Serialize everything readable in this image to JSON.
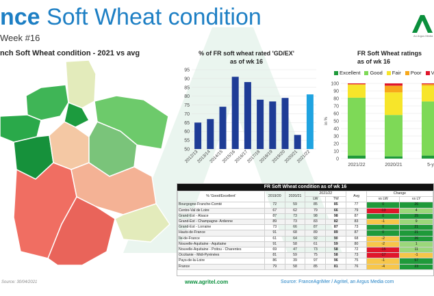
{
  "header": {
    "title_bold": "nce",
    "title_rest": " Soft Wheat condition",
    "subtitle": "Week #16",
    "logo_text": "AG",
    "logo_caption": "An Argus Media"
  },
  "map": {
    "title": "nch Soft Wheat condition - 2021 vs avg"
  },
  "colors": {
    "bar_dark": "#1e3c96",
    "bar_light": "#1fa3e0",
    "excellent": "#1f9a3a",
    "good": "#7ed957",
    "fair": "#f7e52a",
    "poor": "#f7a81b",
    "very_poor": "#e0162b",
    "title_blue": "#1d7fc4",
    "green_link": "#0a8f3c"
  },
  "chart_data": [
    {
      "type": "bar",
      "title": "% of FR soft wheat rated 'GD/EX' as of wk 16",
      "categories": [
        "2012/13",
        "2013/14",
        "2014/15",
        "2015/16",
        "2016/17",
        "2017/18",
        "2018/19",
        "2019/20",
        "2020/21",
        "2021/22"
      ],
      "values": [
        65,
        67,
        74,
        91,
        88,
        78,
        77,
        79,
        58,
        81
      ],
      "highlight_last": true,
      "ylim": [
        50,
        95
      ],
      "yticks": [
        50,
        55,
        60,
        65,
        70,
        75,
        80,
        85,
        90,
        95
      ],
      "xlabel": "",
      "ylabel": ""
    },
    {
      "type": "bar",
      "stacked": true,
      "title": "FR Soft Wheat ratings as of wk 16",
      "categories": [
        "2021/22",
        "2020/21",
        "5-y"
      ],
      "series": [
        {
          "name": "Excellent",
          "values": [
            4,
            3,
            4
          ]
        },
        {
          "name": "Good",
          "values": [
            77,
            55,
            72
          ]
        },
        {
          "name": "Fair",
          "values": [
            17,
            30,
            21
          ]
        },
        {
          "name": "Poor",
          "values": [
            1,
            9,
            2
          ]
        },
        {
          "name": "Ve",
          "values": [
            1,
            3,
            1
          ]
        }
      ],
      "ylim": [
        0,
        100
      ],
      "yticks": [
        0,
        10,
        20,
        30,
        40,
        50,
        60,
        70,
        80,
        90,
        100
      ],
      "ylabel": "in %",
      "legend": "top"
    }
  ],
  "table": {
    "title": "FR Soft Wheat condition as of wk 16",
    "col_headers": [
      "% 'Good/Excellent'",
      "2019/20",
      "2020/21",
      "2021/22",
      "Avg",
      "Change"
    ],
    "sub_headers": [
      "LW",
      "TW",
      "vs LW",
      "vs LY"
    ],
    "rows": [
      {
        "region": "Bourgogne-Franche-Comté",
        "y1920": "72",
        "y2021": "59",
        "lw": "85",
        "tw": "85",
        "avg": "77",
        "vs_lw": "0",
        "vs_ly": "26"
      },
      {
        "region": "Centre-Val de Loire",
        "y1920": "67",
        "y2021": "62",
        "lw": "79",
        "tw": "66",
        "avg": "79",
        "vs_lw": "-13",
        "vs_ly": "4"
      },
      {
        "region": "Grand-Est - Alsace",
        "y1920": "87",
        "y2021": "73",
        "lw": "98",
        "tw": "98",
        "avg": "87",
        "vs_lw": "0",
        "vs_ly": "25"
      },
      {
        "region": "Grand-Est - Champagne- Ardenne",
        "y1920": "89",
        "y2021": "73",
        "lw": "83",
        "tw": "82",
        "avg": "83",
        "vs_lw": "-1",
        "vs_ly": "9"
      },
      {
        "region": "Grand-Est - Lorraine",
        "y1920": "73",
        "y2021": "66",
        "lw": "87",
        "tw": "87",
        "avg": "73",
        "vs_lw": "0",
        "vs_ly": "21"
      },
      {
        "region": "Hauts-de-France",
        "y1920": "91",
        "y2021": "68",
        "lw": "89",
        "tw": "89",
        "avg": "87",
        "vs_lw": "0",
        "vs_ly": "21"
      },
      {
        "region": "Ile-de-France",
        "y1920": "61",
        "y2021": "64",
        "lw": "92",
        "tw": "90",
        "avg": "68",
        "vs_lw": "-2",
        "vs_ly": "26"
      },
      {
        "region": "Nouvelle-Aquitaine - Aquitaine",
        "y1920": "91",
        "y2021": "58",
        "lw": "61",
        "tw": "59",
        "avg": "80",
        "vs_lw": "-2",
        "vs_ly": "1"
      },
      {
        "region": "Nouvelle-Aquitaine - Poitou - Charentes",
        "y1920": "69",
        "y2021": "47",
        "lw": "73",
        "tw": "58",
        "avg": "72",
        "vs_lw": "-15",
        "vs_ly": "11"
      },
      {
        "region": "Occitanie - Midi-Pyrénées",
        "y1920": "81",
        "y2021": "59",
        "lw": "75",
        "tw": "58",
        "avg": "73",
        "vs_lw": "-17",
        "vs_ly": "-1"
      },
      {
        "region": "Pays-de-la-Loire",
        "y1920": "86",
        "y2021": "39",
        "lw": "97",
        "tw": "96",
        "avg": "75",
        "vs_lw": "-1",
        "vs_ly": "57"
      },
      {
        "region": "France",
        "y1920": "79",
        "y2021": "58",
        "lw": "85",
        "tw": "81",
        "avg": "76",
        "vs_lw": "-4",
        "vs_ly": "23"
      }
    ]
  },
  "footer": {
    "date": "Source: 30/04/2021",
    "site": "www.agritel.com",
    "source": "Source: FranceAgriMer / Agritel, an Argus Media com"
  }
}
